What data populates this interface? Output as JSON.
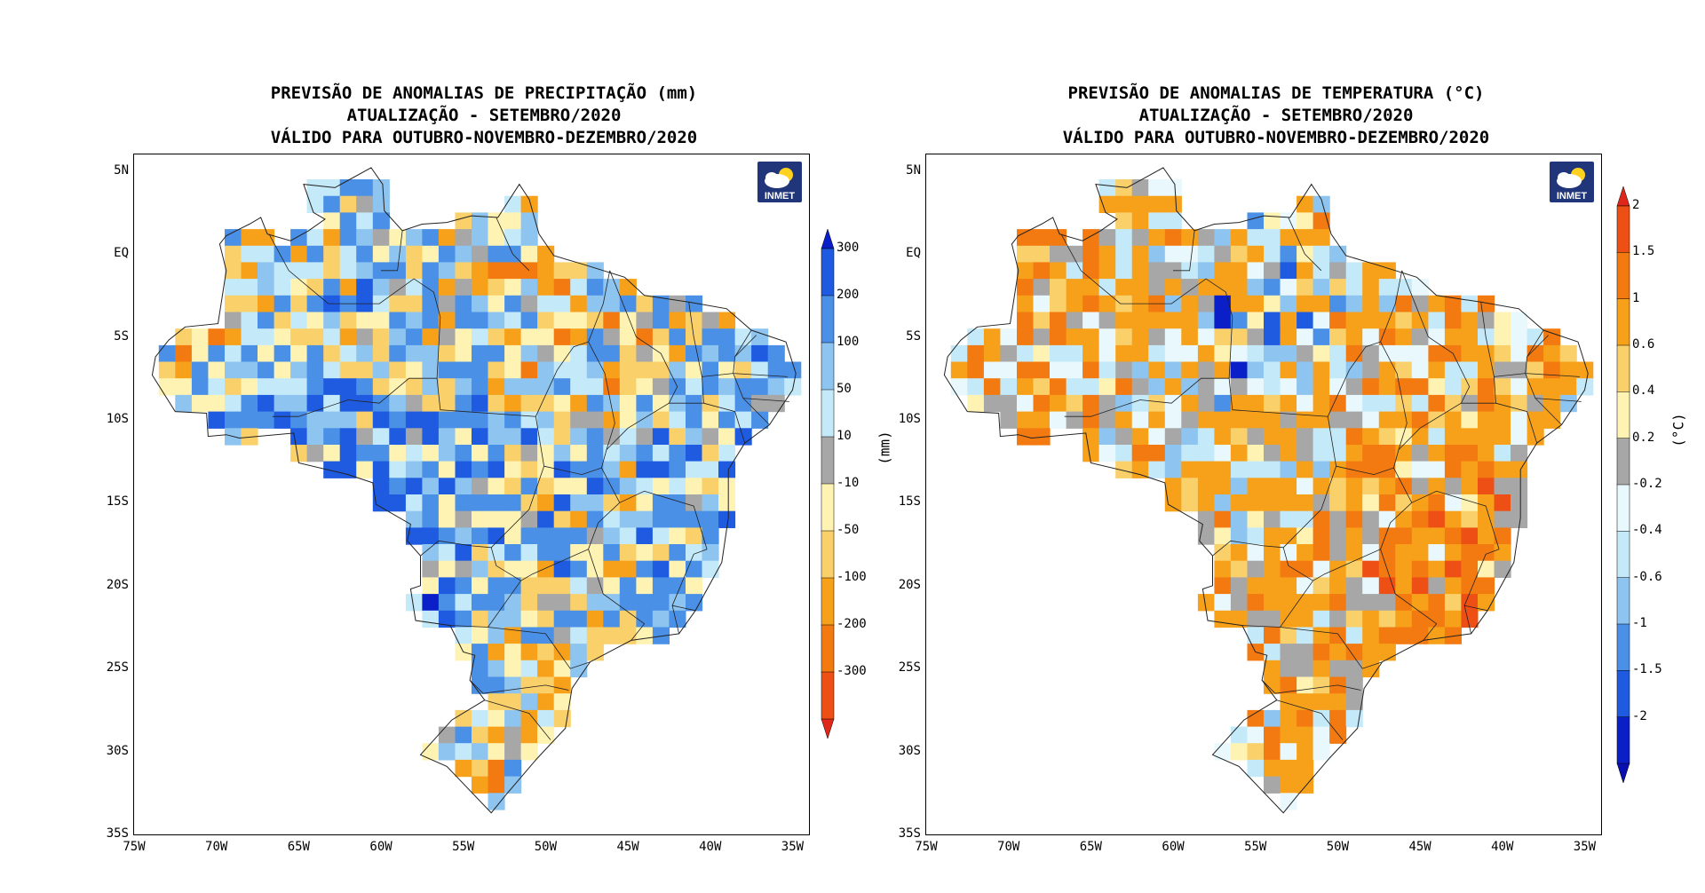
{
  "panels": [
    {
      "id": "precip",
      "title_lines": [
        "PREVISÃO DE ANOMALIAS DE PRECIPITAÇÃO (mm)",
        "ATUALIZAÇÃO - SETEMBRO/2020",
        "VÁLIDO PARA OUTUBRO-NOVEMBRO-DEZEMBRO/2020"
      ],
      "logo_text": "INMET",
      "unit": "(mm)",
      "colorbar": {
        "levels": [
          "300",
          "200",
          "100",
          "50",
          "10",
          "-10",
          "-50",
          "-100",
          "-200",
          "-300"
        ],
        "colors": [
          "#0a1fc8",
          "#1e5be0",
          "#4a90e6",
          "#8ec4f0",
          "#c4eafa",
          "#a7a7a7",
          "#fff3b3",
          "#fad06a",
          "#f7a11a",
          "#f37a10",
          "#ee4f14",
          "#e0281a"
        ]
      },
      "palette_weights": [
        8,
        12,
        16,
        10,
        7,
        4,
        9,
        12,
        10,
        8,
        4
      ],
      "seed": 7
    },
    {
      "id": "temp",
      "title_lines": [
        "PREVISÃO DE ANOMALIAS DE TEMPERATURA (°C)",
        "ATUALIZAÇÃO - SETEMBRO/2020",
        "VÁLIDO PARA OUTUBRO-NOVEMBRO-DEZEMBRO/2020"
      ],
      "logo_text": "INMET",
      "unit": "(°C)",
      "colorbar": {
        "levels": [
          "2",
          "1.5",
          "1",
          "0.6",
          "0.4",
          "0.2",
          "-0.2",
          "-0.4",
          "-0.6",
          "-1",
          "-1.5",
          "-2"
        ],
        "colors": [
          "#e0281a",
          "#ee4f14",
          "#f37a10",
          "#f7a11a",
          "#fad06a",
          "#fff3b3",
          "#a7a7a7",
          "#e8f8fc",
          "#c4eafa",
          "#8ec4f0",
          "#4a90e6",
          "#1e5be0",
          "#0a1fc8",
          "#0a10b0"
        ]
      },
      "palette_weights": [
        1,
        10,
        18,
        20,
        4,
        2,
        10,
        6,
        8,
        8,
        5,
        3,
        2
      ],
      "seed": 19
    }
  ],
  "axes": {
    "lat_labels": [
      "5N",
      "EQ",
      "5S",
      "10S",
      "15S",
      "20S",
      "25S",
      "30S",
      "35S"
    ],
    "lon_labels": [
      "75W",
      "70W",
      "65W",
      "60W",
      "55W",
      "50W",
      "45W",
      "40W",
      "35W"
    ],
    "lat_range": [
      -35,
      6
    ],
    "lon_range": [
      -75,
      -34
    ]
  }
}
